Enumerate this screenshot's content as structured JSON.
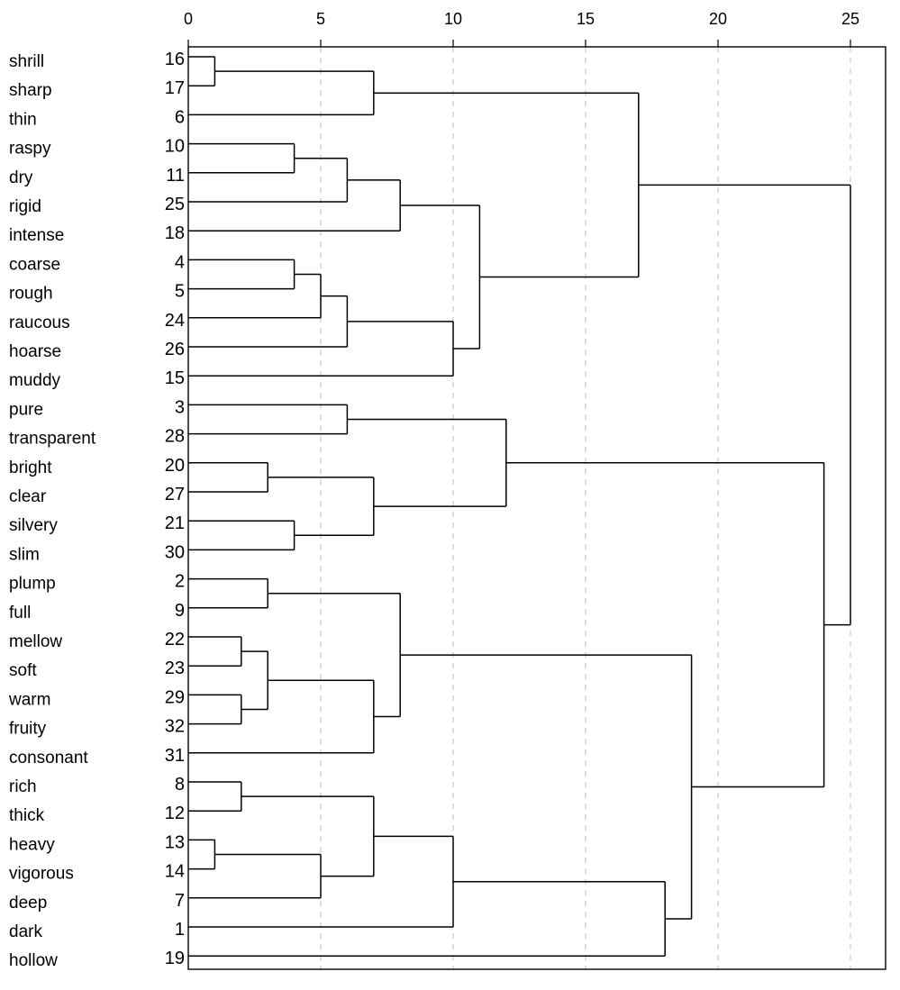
{
  "chart_data": {
    "type": "dendrogram",
    "title": "",
    "xlabel": "",
    "ylabel": "",
    "xlim": [
      0,
      25
    ],
    "x_ticks": [
      0,
      5,
      10,
      15,
      20,
      25
    ],
    "x_tick_labels": [
      "0",
      "5",
      "10",
      "15",
      "20",
      "25"
    ],
    "grid": true,
    "leaves": [
      {
        "label": "shrill",
        "case": "16"
      },
      {
        "label": "sharp",
        "case": "17"
      },
      {
        "label": "thin",
        "case": "6"
      },
      {
        "label": "raspy",
        "case": "10"
      },
      {
        "label": "dry",
        "case": "11"
      },
      {
        "label": "rigid",
        "case": "25"
      },
      {
        "label": "intense",
        "case": "18"
      },
      {
        "label": "coarse",
        "case": "4"
      },
      {
        "label": "rough",
        "case": "5"
      },
      {
        "label": "raucous",
        "case": "24"
      },
      {
        "label": "hoarse",
        "case": "26"
      },
      {
        "label": "muddy",
        "case": "15"
      },
      {
        "label": "pure",
        "case": "3"
      },
      {
        "label": "transparent",
        "case": "28"
      },
      {
        "label": "bright",
        "case": "20"
      },
      {
        "label": "clear",
        "case": "27"
      },
      {
        "label": "silvery",
        "case": "21"
      },
      {
        "label": "slim",
        "case": "30"
      },
      {
        "label": "plump",
        "case": "2"
      },
      {
        "label": "full",
        "case": "9"
      },
      {
        "label": "mellow",
        "case": "22"
      },
      {
        "label": "soft",
        "case": "23"
      },
      {
        "label": "warm",
        "case": "29"
      },
      {
        "label": "fruity",
        "case": "32"
      },
      {
        "label": "consonant",
        "case": "31"
      },
      {
        "label": "rich",
        "case": "8"
      },
      {
        "label": "thick",
        "case": "12"
      },
      {
        "label": "heavy",
        "case": "13"
      },
      {
        "label": "vigorous",
        "case": "14"
      },
      {
        "label": "deep",
        "case": "7"
      },
      {
        "label": "dark",
        "case": "1"
      },
      {
        "label": "hollow",
        "case": "19"
      }
    ],
    "merges": [
      {
        "id": "n1",
        "children": [
          "L0",
          "L1"
        ],
        "height": 1
      },
      {
        "id": "n2",
        "children": [
          "n1",
          "L2"
        ],
        "height": 7
      },
      {
        "id": "n3",
        "children": [
          "L3",
          "L4"
        ],
        "height": 4
      },
      {
        "id": "n4",
        "children": [
          "n3",
          "L5"
        ],
        "height": 6
      },
      {
        "id": "n5",
        "children": [
          "n4",
          "L6"
        ],
        "height": 8
      },
      {
        "id": "n6",
        "children": [
          "L7",
          "L8"
        ],
        "height": 4
      },
      {
        "id": "n7",
        "children": [
          "n6",
          "L9"
        ],
        "height": 5
      },
      {
        "id": "n8",
        "children": [
          "n7",
          "L10"
        ],
        "height": 6
      },
      {
        "id": "n9",
        "children": [
          "n8",
          "L11"
        ],
        "height": 10
      },
      {
        "id": "n10",
        "children": [
          "n5",
          "n9"
        ],
        "height": 11
      },
      {
        "id": "n11",
        "children": [
          "n2",
          "n10"
        ],
        "height": 17
      },
      {
        "id": "n12",
        "children": [
          "L12",
          "L13"
        ],
        "height": 6
      },
      {
        "id": "n13",
        "children": [
          "L14",
          "L15"
        ],
        "height": 3
      },
      {
        "id": "n14",
        "children": [
          "L16",
          "L17"
        ],
        "height": 4
      },
      {
        "id": "n15",
        "children": [
          "n13",
          "n14"
        ],
        "height": 7
      },
      {
        "id": "n16",
        "children": [
          "n12",
          "n15"
        ],
        "height": 12
      },
      {
        "id": "n17",
        "children": [
          "L18",
          "L19"
        ],
        "height": 3
      },
      {
        "id": "n18",
        "children": [
          "L20",
          "L21"
        ],
        "height": 2
      },
      {
        "id": "n19",
        "children": [
          "L22",
          "L23"
        ],
        "height": 2
      },
      {
        "id": "n20",
        "children": [
          "n18",
          "n19"
        ],
        "height": 3
      },
      {
        "id": "n21",
        "children": [
          "n20",
          "L24"
        ],
        "height": 7
      },
      {
        "id": "n22",
        "children": [
          "n17",
          "n21"
        ],
        "height": 8
      },
      {
        "id": "n23",
        "children": [
          "L25",
          "L26"
        ],
        "height": 2
      },
      {
        "id": "n24",
        "children": [
          "L27",
          "L28"
        ],
        "height": 1
      },
      {
        "id": "n25",
        "children": [
          "n24",
          "L29"
        ],
        "height": 5
      },
      {
        "id": "n26",
        "children": [
          "n23",
          "n25"
        ],
        "height": 7
      },
      {
        "id": "n27",
        "children": [
          "n26",
          "L30"
        ],
        "height": 10
      },
      {
        "id": "n28",
        "children": [
          "n27",
          "L31"
        ],
        "height": 18
      },
      {
        "id": "n29",
        "children": [
          "n22",
          "n28"
        ],
        "height": 19
      },
      {
        "id": "n30",
        "children": [
          "n16",
          "n29"
        ],
        "height": 24
      },
      {
        "id": "n31",
        "children": [
          "n11",
          "n30"
        ],
        "height": 25
      }
    ]
  }
}
